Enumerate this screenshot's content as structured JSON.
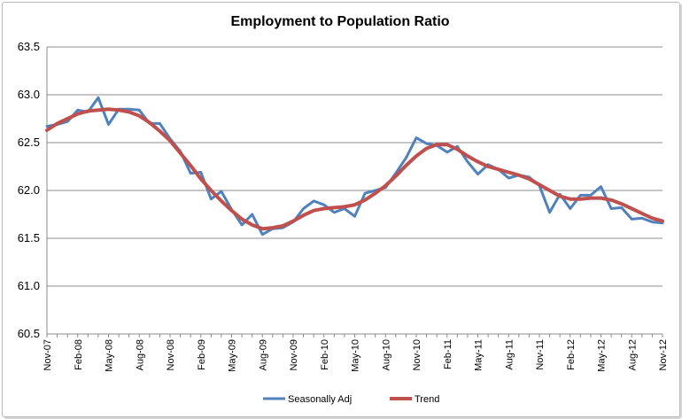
{
  "chart_data": {
    "type": "line",
    "title": "Employment to Population Ratio",
    "xlabel": "",
    "ylabel": "",
    "ylim": [
      60.5,
      63.5
    ],
    "yticks": [
      "63.5",
      "63.0",
      "62.5",
      "62.0",
      "61.5",
      "61.0",
      "60.5"
    ],
    "grid": "horizontal",
    "legend_position": "bottom",
    "x_tick_labels": [
      "Nov-07",
      "Feb-08",
      "May-08",
      "Aug-08",
      "Nov-08",
      "Feb-09",
      "May-09",
      "Aug-09",
      "Nov-09",
      "Feb-10",
      "May-10",
      "Aug-10",
      "Nov-10",
      "Feb-11",
      "May-11",
      "Aug-11",
      "Nov-11",
      "Feb-12",
      "May-12",
      "Aug-12",
      "Nov-12"
    ],
    "x": [
      "Nov-07",
      "Dec-07",
      "Jan-08",
      "Feb-08",
      "Mar-08",
      "Apr-08",
      "May-08",
      "Jun-08",
      "Jul-08",
      "Aug-08",
      "Sep-08",
      "Oct-08",
      "Nov-08",
      "Dec-08",
      "Jan-09",
      "Feb-09",
      "Mar-09",
      "Apr-09",
      "May-09",
      "Jun-09",
      "Jul-09",
      "Aug-09",
      "Sep-09",
      "Oct-09",
      "Nov-09",
      "Dec-09",
      "Jan-10",
      "Feb-10",
      "Mar-10",
      "Apr-10",
      "May-10",
      "Jun-10",
      "Jul-10",
      "Aug-10",
      "Sep-10",
      "Oct-10",
      "Nov-10",
      "Dec-10",
      "Jan-11",
      "Feb-11",
      "Mar-11",
      "Apr-11",
      "May-11",
      "Jun-11",
      "Jul-11",
      "Aug-11",
      "Sep-11",
      "Oct-11",
      "Nov-11",
      "Dec-11",
      "Jan-12",
      "Feb-12",
      "Mar-12",
      "Apr-12",
      "May-12",
      "Jun-12",
      "Jul-12",
      "Aug-12",
      "Sep-12",
      "Oct-12",
      "Nov-12"
    ],
    "series": [
      {
        "name": "Seasonally Adj",
        "color": "#4f81bd",
        "values": [
          62.67,
          62.69,
          62.72,
          62.84,
          62.82,
          62.97,
          62.69,
          62.85,
          62.85,
          62.84,
          62.7,
          62.7,
          62.54,
          62.41,
          62.18,
          62.19,
          61.91,
          61.99,
          61.8,
          61.64,
          61.75,
          61.54,
          61.6,
          61.61,
          61.67,
          61.81,
          61.89,
          61.85,
          61.77,
          61.81,
          61.73,
          61.97,
          62.0,
          62.03,
          62.18,
          62.34,
          62.55,
          62.49,
          62.47,
          62.4,
          62.46,
          62.3,
          62.17,
          62.27,
          62.22,
          62.13,
          62.16,
          62.14,
          62.05,
          61.77,
          61.96,
          61.81,
          61.95,
          61.95,
          62.04,
          61.81,
          61.82,
          61.7,
          61.71,
          61.67,
          61.66
        ]
      },
      {
        "name": "Trend",
        "color": "#c0504d",
        "values": [
          62.63,
          62.7,
          62.75,
          62.8,
          62.83,
          62.84,
          62.85,
          62.84,
          62.82,
          62.78,
          62.71,
          62.62,
          62.52,
          62.39,
          62.26,
          62.12,
          62.0,
          61.89,
          61.79,
          61.7,
          61.64,
          61.6,
          61.61,
          61.63,
          61.68,
          61.74,
          61.79,
          61.81,
          61.82,
          61.83,
          61.85,
          61.9,
          61.97,
          62.05,
          62.15,
          62.26,
          62.36,
          62.44,
          62.48,
          62.48,
          62.43,
          62.36,
          62.3,
          62.25,
          62.22,
          62.19,
          62.16,
          62.12,
          62.06,
          62.0,
          61.94,
          61.91,
          61.91,
          61.92,
          61.92,
          61.9,
          61.86,
          61.81,
          61.76,
          61.71,
          61.68
        ]
      }
    ]
  }
}
